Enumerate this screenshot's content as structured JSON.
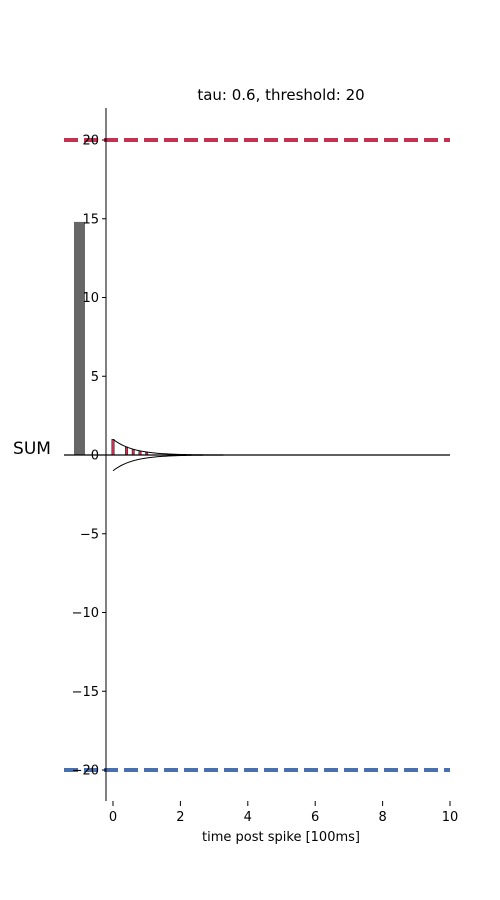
{
  "chart_data": {
    "type": "line",
    "title": "tau: 0.6, threshold: 20",
    "xlabel": "time post spike [100ms]",
    "ylabel": "",
    "side_label": "SUM",
    "xlim": [
      -0.2,
      10
    ],
    "ylim": [
      -22,
      22
    ],
    "xticks": [
      0,
      2,
      4,
      6,
      8,
      10
    ],
    "xtick_labels": [
      "0",
      "2",
      "4",
      "6",
      "8",
      "10"
    ],
    "yticks": [
      -20,
      -15,
      -10,
      -5,
      0,
      5,
      10,
      15,
      20
    ],
    "ytick_labels": [
      "−20",
      "−15",
      "−10",
      "−5",
      "0",
      "5",
      "10",
      "15",
      "20"
    ],
    "tau": 0.6,
    "threshold": 20,
    "sum_value": 14.8,
    "decay_upper": {
      "name": "upper envelope",
      "function": "exp(-t/tau)",
      "amplitude": 1,
      "t_range": [
        0,
        10
      ]
    },
    "decay_lower": {
      "name": "lower envelope",
      "function": "-exp(-t/tau)",
      "amplitude": -1,
      "t_range": [
        0,
        10
      ]
    },
    "spike_times": [
      0.0,
      0.4,
      0.6,
      0.8,
      1.0
    ],
    "threshold_upper": {
      "value": 20,
      "color": "#c4304f"
    },
    "threshold_lower": {
      "value": -20,
      "color": "#4a6faf"
    },
    "sum_bar_color": "#676767",
    "spike_color": "#c4304f"
  }
}
